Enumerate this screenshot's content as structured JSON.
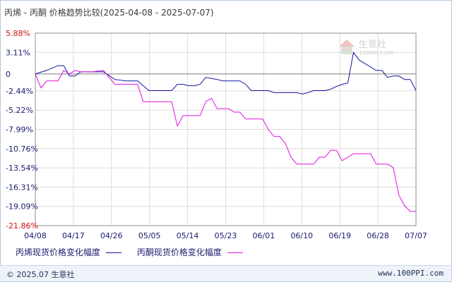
{
  "title": "丙烯 - 丙酮 价格趋势比较(2025-04-08 - 2025-07-07)",
  "watermark": {
    "text": "生意社",
    "subtext": "100PPI.COM"
  },
  "footer": {
    "copyright": "© 2025.07 生意社",
    "site": "www.100PPI.com"
  },
  "chart_data": {
    "type": "line",
    "x_ticks": [
      "04/08",
      "04/17",
      "04/26",
      "05/05",
      "05/14",
      "05/23",
      "06/01",
      "06/10",
      "06/19",
      "06/28",
      "07/07"
    ],
    "y_ticks": [
      "5.88%",
      "3.11%",
      "0",
      "-2.44%",
      "-5.22%",
      "-7.99%",
      "-10.76%",
      "-13.54%",
      "-16.31%",
      "-19.09%",
      "-21.86%"
    ],
    "ylim": [
      -21.86,
      5.88
    ],
    "grid": true,
    "legend_position": "bottom",
    "series": [
      {
        "name": "丙烯现货价格变化幅度",
        "color": "#1414a0",
        "points": [
          [
            0,
            0
          ],
          [
            2,
            0.5
          ],
          [
            4,
            1.2
          ],
          [
            5,
            1.2
          ],
          [
            6,
            -0.3
          ],
          [
            7,
            -0.3
          ],
          [
            8,
            0.3
          ],
          [
            12,
            0.3
          ],
          [
            14,
            -0.8
          ],
          [
            16,
            -1.0
          ],
          [
            18,
            -1.0
          ],
          [
            20,
            -2.4
          ],
          [
            22,
            -2.4
          ],
          [
            24,
            -2.4
          ],
          [
            25,
            -1.5
          ],
          [
            26,
            -1.5
          ],
          [
            27,
            -1.7
          ],
          [
            28,
            -1.7
          ],
          [
            29,
            -1.5
          ],
          [
            30,
            -0.5
          ],
          [
            32,
            -0.8
          ],
          [
            33,
            -1.0
          ],
          [
            34,
            -1.0
          ],
          [
            35,
            -1.0
          ],
          [
            36,
            -1.0
          ],
          [
            37,
            -1.5
          ],
          [
            38,
            -2.4
          ],
          [
            40,
            -2.4
          ],
          [
            41,
            -2.4
          ],
          [
            42,
            -2.7
          ],
          [
            43,
            -2.7
          ],
          [
            44,
            -2.7
          ],
          [
            46,
            -2.7
          ],
          [
            47,
            -2.9
          ],
          [
            48,
            -2.7
          ],
          [
            49,
            -2.4
          ],
          [
            50,
            -2.4
          ],
          [
            51,
            -2.4
          ],
          [
            52,
            -2.2
          ],
          [
            53,
            -1.8
          ],
          [
            54,
            -1.5
          ],
          [
            55,
            -1.3
          ],
          [
            56,
            3.1
          ],
          [
            57,
            2.0
          ],
          [
            58,
            1.5
          ],
          [
            59,
            1.0
          ],
          [
            60,
            0.5
          ],
          [
            61,
            0.5
          ],
          [
            62,
            -0.5
          ],
          [
            63,
            -0.3
          ],
          [
            64,
            -0.3
          ],
          [
            65,
            -0.8
          ],
          [
            66,
            -0.8
          ],
          [
            67,
            -2.4
          ]
        ]
      },
      {
        "name": "丙酮现货价格变化幅度",
        "color": "#e010e0",
        "points": [
          [
            0,
            0
          ],
          [
            1,
            -2.0
          ],
          [
            2,
            -1.0
          ],
          [
            3,
            -1.0
          ],
          [
            4,
            -1.0
          ],
          [
            5,
            0.5
          ],
          [
            6,
            0.0
          ],
          [
            7,
            0.5
          ],
          [
            8,
            0.3
          ],
          [
            10,
            0.3
          ],
          [
            12,
            0.5
          ],
          [
            14,
            -1.5
          ],
          [
            16,
            -1.5
          ],
          [
            18,
            -1.5
          ],
          [
            19,
            -4.0
          ],
          [
            20,
            -4.0
          ],
          [
            21,
            -4.0
          ],
          [
            22,
            -4.0
          ],
          [
            23,
            -4.0
          ],
          [
            24,
            -4.0
          ],
          [
            25,
            -7.5
          ],
          [
            26,
            -6.0
          ],
          [
            28,
            -6.0
          ],
          [
            29,
            -6.0
          ],
          [
            30,
            -4.0
          ],
          [
            31,
            -3.5
          ],
          [
            32,
            -5.0
          ],
          [
            34,
            -5.0
          ],
          [
            35,
            -5.5
          ],
          [
            36,
            -5.5
          ],
          [
            37,
            -6.5
          ],
          [
            39,
            -6.5
          ],
          [
            40,
            -6.5
          ],
          [
            41,
            -8.0
          ],
          [
            42,
            -9.0
          ],
          [
            43,
            -9.0
          ],
          [
            44,
            -10.0
          ],
          [
            45,
            -12.0
          ],
          [
            46,
            -13.0
          ],
          [
            48,
            -13.0
          ],
          [
            49,
            -13.0
          ],
          [
            50,
            -12.0
          ],
          [
            51,
            -12.0
          ],
          [
            52,
            -11.0
          ],
          [
            53,
            -11.0
          ],
          [
            54,
            -12.5
          ],
          [
            55,
            -12.0
          ],
          [
            56,
            -11.5
          ],
          [
            57,
            -11.5
          ],
          [
            58,
            -11.5
          ],
          [
            59,
            -11.5
          ],
          [
            60,
            -13.0
          ],
          [
            61,
            -13.0
          ],
          [
            62,
            -13.0
          ],
          [
            63,
            -13.5
          ],
          [
            64,
            -17.5
          ],
          [
            65,
            -19.0
          ],
          [
            66,
            -19.8
          ],
          [
            67,
            -19.8
          ]
        ]
      }
    ]
  }
}
